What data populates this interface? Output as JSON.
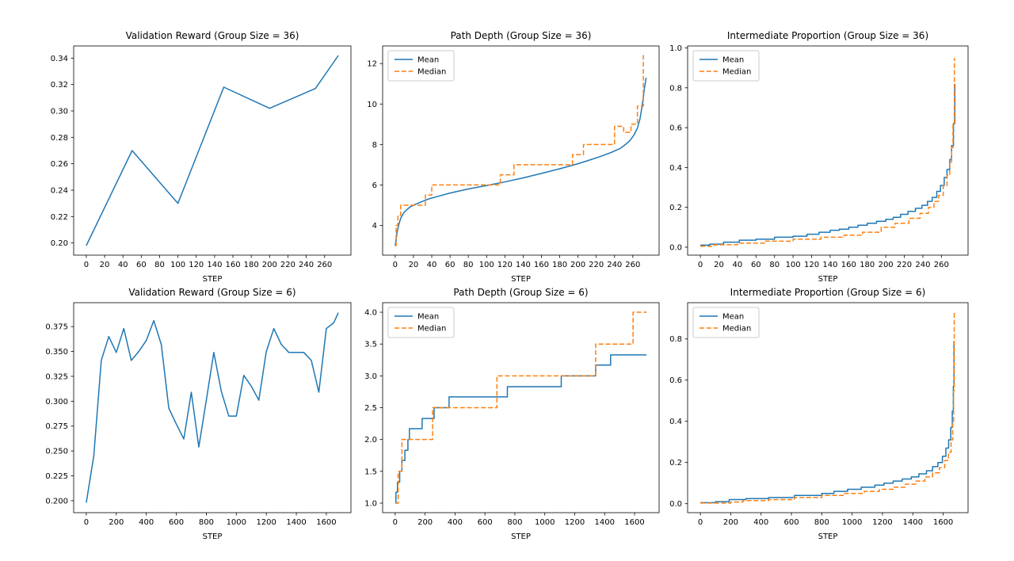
{
  "figure": {
    "background": "#ffffff",
    "accent_blue": "#1f77b4",
    "accent_orange": "#ff7f0e",
    "legend_labels": [
      "Mean",
      "Median"
    ]
  },
  "chart_data": [
    {
      "type": "line",
      "title": "Validation Reward (Group Size = 36)",
      "xlabel": "STEP",
      "xlim": [
        -13.75,
        288.75
      ],
      "ylim": [
        0.1908,
        0.3492
      ],
      "grid": false,
      "legend": false,
      "xticks": {
        "values": [
          0,
          20,
          40,
          60,
          80,
          100,
          120,
          140,
          160,
          180,
          200,
          220,
          240,
          260
        ],
        "labels": [
          "0",
          "20",
          "40",
          "60",
          "80",
          "100",
          "120",
          "140",
          "160",
          "180",
          "200",
          "220",
          "240",
          "260"
        ]
      },
      "yticks": {
        "values": [
          0.2,
          0.22,
          0.24,
          0.26,
          0.28,
          0.3,
          0.32,
          0.34
        ],
        "labels": [
          "0.20",
          "0.22",
          "0.24",
          "0.26",
          "0.28",
          "0.30",
          "0.32",
          "0.34"
        ]
      },
      "series": [
        {
          "name": null,
          "style": "solid",
          "color": "#1f77b4",
          "step": false,
          "x": [
            0,
            50,
            100,
            150,
            200,
            250,
            275
          ],
          "y": [
            0.198,
            0.27,
            0.23,
            0.318,
            0.302,
            0.317,
            0.342
          ]
        }
      ]
    },
    {
      "type": "line",
      "title": "Path Depth (Group Size = 36)",
      "xlabel": "STEP",
      "xlim": [
        -13.75,
        288.75
      ],
      "ylim": [
        2.53,
        12.87
      ],
      "grid": false,
      "legend": true,
      "legend_position": "upper-left",
      "xticks": {
        "values": [
          0,
          20,
          40,
          60,
          80,
          100,
          120,
          140,
          160,
          180,
          200,
          220,
          240,
          260
        ],
        "labels": [
          "0",
          "20",
          "40",
          "60",
          "80",
          "100",
          "120",
          "140",
          "160",
          "180",
          "200",
          "220",
          "240",
          "260"
        ]
      },
      "yticks": {
        "values": [
          4,
          6,
          8,
          10,
          12
        ],
        "labels": [
          "4",
          "6",
          "8",
          "10",
          "12"
        ]
      },
      "series": [
        {
          "name": "Mean",
          "style": "solid",
          "color": "#1f77b4",
          "step": false,
          "x": [
            0,
            1,
            2,
            4,
            6,
            9,
            12,
            16,
            20,
            28,
            36,
            48,
            60,
            80,
            100,
            120,
            140,
            160,
            180,
            200,
            212,
            224,
            236,
            246,
            252,
            257,
            261,
            265,
            268,
            270.5,
            272.5,
            274.5
          ],
          "y": [
            3.0,
            3.3,
            3.65,
            4.05,
            4.35,
            4.6,
            4.75,
            4.9,
            5.0,
            5.15,
            5.3,
            5.45,
            5.6,
            5.8,
            5.97,
            6.15,
            6.35,
            6.57,
            6.8,
            7.05,
            7.22,
            7.4,
            7.6,
            7.8,
            8.0,
            8.2,
            8.45,
            8.8,
            9.3,
            10.0,
            10.7,
            11.3
          ]
        },
        {
          "name": "Median",
          "style": "dashed",
          "color": "#ff7f0e",
          "step": true,
          "x": [
            0,
            1,
            3,
            6,
            33,
            40,
            115,
            130,
            194,
            206,
            240,
            250,
            258,
            265,
            271.5,
            274.5
          ],
          "y": [
            3,
            4,
            4.5,
            5,
            5.5,
            6,
            6.5,
            7,
            7.5,
            8.0,
            8.9,
            8.6,
            9.0,
            9.9,
            12.4,
            12.4
          ]
        }
      ]
    },
    {
      "type": "line",
      "title": "Intermediate Proportion (Group Size = 36)",
      "xlabel": "STEP",
      "xlim": [
        -13.75,
        288.75
      ],
      "ylim": [
        -0.04,
        1.01
      ],
      "grid": false,
      "legend": true,
      "legend_position": "upper-left",
      "xticks": {
        "values": [
          0,
          20,
          40,
          60,
          80,
          100,
          120,
          140,
          160,
          180,
          200,
          220,
          240,
          260
        ],
        "labels": [
          "0",
          "20",
          "40",
          "60",
          "80",
          "100",
          "120",
          "140",
          "160",
          "180",
          "200",
          "220",
          "240",
          "260"
        ]
      },
      "yticks": {
        "values": [
          0.0,
          0.2,
          0.4,
          0.6,
          0.8,
          1.0
        ],
        "labels": [
          "0.0",
          "0.2",
          "0.4",
          "0.6",
          "0.8",
          "1.0"
        ]
      },
      "series": [
        {
          "name": "Mean",
          "style": "solid",
          "color": "#1f77b4",
          "step": true,
          "x": [
            0,
            10,
            25,
            42,
            60,
            80,
            100,
            115,
            128,
            140,
            150,
            160,
            170,
            180,
            190,
            200,
            208,
            216,
            224,
            232,
            239,
            245,
            250,
            255,
            259,
            263,
            266,
            269,
            271,
            273,
            274.5
          ],
          "y": [
            0.01,
            0.015,
            0.025,
            0.035,
            0.04,
            0.05,
            0.055,
            0.065,
            0.075,
            0.085,
            0.09,
            0.1,
            0.11,
            0.12,
            0.13,
            0.14,
            0.15,
            0.165,
            0.18,
            0.195,
            0.21,
            0.23,
            0.25,
            0.28,
            0.31,
            0.35,
            0.39,
            0.44,
            0.51,
            0.62,
            0.82
          ]
        },
        {
          "name": "Median",
          "style": "dashed",
          "color": "#ff7f0e",
          "step": true,
          "x": [
            0,
            15,
            40,
            70,
            100,
            130,
            155,
            175,
            195,
            210,
            225,
            237,
            246,
            252,
            257,
            262,
            266,
            269,
            271,
            272.5,
            274
          ],
          "y": [
            0.005,
            0.012,
            0.02,
            0.03,
            0.04,
            0.05,
            0.06,
            0.075,
            0.1,
            0.12,
            0.145,
            0.17,
            0.2,
            0.23,
            0.26,
            0.31,
            0.36,
            0.42,
            0.5,
            0.62,
            0.95
          ]
        }
      ]
    },
    {
      "type": "line",
      "title": "Validation Reward (Group Size = 6)",
      "xlabel": "STEP",
      "xlim": [
        -84,
        1764
      ],
      "ylim": [
        0.188,
        0.399
      ],
      "grid": false,
      "legend": false,
      "xticks": {
        "values": [
          0,
          200,
          400,
          600,
          800,
          1000,
          1200,
          1400,
          1600
        ],
        "labels": [
          "0",
          "200",
          "400",
          "600",
          "800",
          "1000",
          "1200",
          "1400",
          "1600"
        ]
      },
      "yticks": {
        "values": [
          0.2,
          0.225,
          0.25,
          0.275,
          0.3,
          0.325,
          0.35,
          0.375
        ],
        "labels": [
          "0.200",
          "0.225",
          "0.250",
          "0.275",
          "0.300",
          "0.325",
          "0.350",
          "0.375"
        ]
      },
      "series": [
        {
          "name": null,
          "style": "solid",
          "color": "#1f77b4",
          "step": false,
          "x": [
            0,
            50,
            100,
            150,
            200,
            250,
            300,
            350,
            400,
            450,
            500,
            550,
            600,
            650,
            700,
            750,
            800,
            850,
            900,
            950,
            1000,
            1050,
            1100,
            1150,
            1200,
            1250,
            1300,
            1350,
            1400,
            1450,
            1500,
            1550,
            1600,
            1650,
            1680
          ],
          "y": [
            0.198,
            0.245,
            0.341,
            0.365,
            0.349,
            0.373,
            0.341,
            0.35,
            0.361,
            0.381,
            0.357,
            0.293,
            0.277,
            0.262,
            0.309,
            0.254,
            0.301,
            0.349,
            0.31,
            0.285,
            0.285,
            0.326,
            0.315,
            0.301,
            0.35,
            0.373,
            0.357,
            0.349,
            0.349,
            0.349,
            0.341,
            0.309,
            0.373,
            0.379,
            0.389
          ]
        }
      ]
    },
    {
      "type": "line",
      "title": "Path Depth (Group Size = 6)",
      "xlabel": "STEP",
      "xlim": [
        -84,
        1764
      ],
      "ylim": [
        0.85,
        4.15
      ],
      "grid": false,
      "legend": true,
      "legend_position": "upper-left",
      "xticks": {
        "values": [
          0,
          200,
          400,
          600,
          800,
          1000,
          1200,
          1400,
          1600
        ],
        "labels": [
          "0",
          "200",
          "400",
          "600",
          "800",
          "1000",
          "1200",
          "1400",
          "1600"
        ]
      },
      "yticks": {
        "values": [
          1.0,
          1.5,
          2.0,
          2.5,
          3.0,
          3.5,
          4.0
        ],
        "labels": [
          "1.0",
          "1.5",
          "2.0",
          "2.5",
          "3.0",
          "3.5",
          "4.0"
        ]
      },
      "series": [
        {
          "name": "Mean",
          "style": "solid",
          "color": "#1f77b4",
          "step": true,
          "x": [
            0,
            5,
            15,
            30,
            45,
            65,
            85,
            95,
            180,
            260,
            360,
            750,
            1110,
            1340,
            1440,
            1680
          ],
          "y": [
            1.0,
            1.17,
            1.33,
            1.5,
            1.67,
            1.83,
            2.0,
            2.17,
            2.33,
            2.5,
            2.67,
            2.83,
            3.0,
            3.17,
            3.33,
            3.33
          ]
        },
        {
          "name": "Median",
          "style": "dashed",
          "color": "#ff7f0e",
          "step": true,
          "x": [
            0,
            20,
            45,
            250,
            680,
            1340,
            1590,
            1680
          ],
          "y": [
            1.0,
            1.5,
            2.0,
            2.5,
            3.0,
            3.5,
            4.0,
            4.0
          ]
        }
      ]
    },
    {
      "type": "line",
      "title": "Intermediate Proportion (Group Size = 6)",
      "xlabel": "STEP",
      "xlim": [
        -84,
        1764
      ],
      "ylim": [
        -0.0435,
        0.976
      ],
      "grid": false,
      "legend": true,
      "legend_position": "upper-left",
      "xticks": {
        "values": [
          0,
          200,
          400,
          600,
          800,
          1000,
          1200,
          1400,
          1600
        ],
        "labels": [
          "0",
          "200",
          "400",
          "600",
          "800",
          "1000",
          "1200",
          "1400",
          "1600"
        ]
      },
      "yticks": {
        "values": [
          0.0,
          0.2,
          0.4,
          0.6,
          0.8
        ],
        "labels": [
          "0.0",
          "0.2",
          "0.4",
          "0.6",
          "0.8"
        ]
      },
      "series": [
        {
          "name": "Mean",
          "style": "solid",
          "color": "#1f77b4",
          "step": true,
          "x": [
            0,
            100,
            190,
            300,
            450,
            620,
            800,
            880,
            970,
            1060,
            1150,
            1210,
            1270,
            1330,
            1390,
            1440,
            1490,
            1530,
            1565,
            1595,
            1618,
            1636,
            1650,
            1660,
            1667,
            1671
          ],
          "y": [
            0.005,
            0.01,
            0.02,
            0.025,
            0.03,
            0.04,
            0.05,
            0.06,
            0.07,
            0.08,
            0.09,
            0.1,
            0.11,
            0.12,
            0.13,
            0.145,
            0.16,
            0.18,
            0.2,
            0.23,
            0.27,
            0.31,
            0.37,
            0.45,
            0.57,
            0.79
          ]
        },
        {
          "name": "Median",
          "style": "dashed",
          "color": "#ff7f0e",
          "step": true,
          "x": [
            0,
            200,
            280,
            450,
            620,
            800,
            950,
            1080,
            1180,
            1270,
            1350,
            1420,
            1480,
            1530,
            1575,
            1610,
            1635,
            1652,
            1663,
            1669,
            1673
          ],
          "y": [
            0.003,
            0.008,
            0.015,
            0.02,
            0.03,
            0.04,
            0.05,
            0.06,
            0.07,
            0.08,
            0.095,
            0.11,
            0.13,
            0.15,
            0.175,
            0.21,
            0.25,
            0.31,
            0.4,
            0.55,
            0.93
          ]
        }
      ]
    }
  ]
}
